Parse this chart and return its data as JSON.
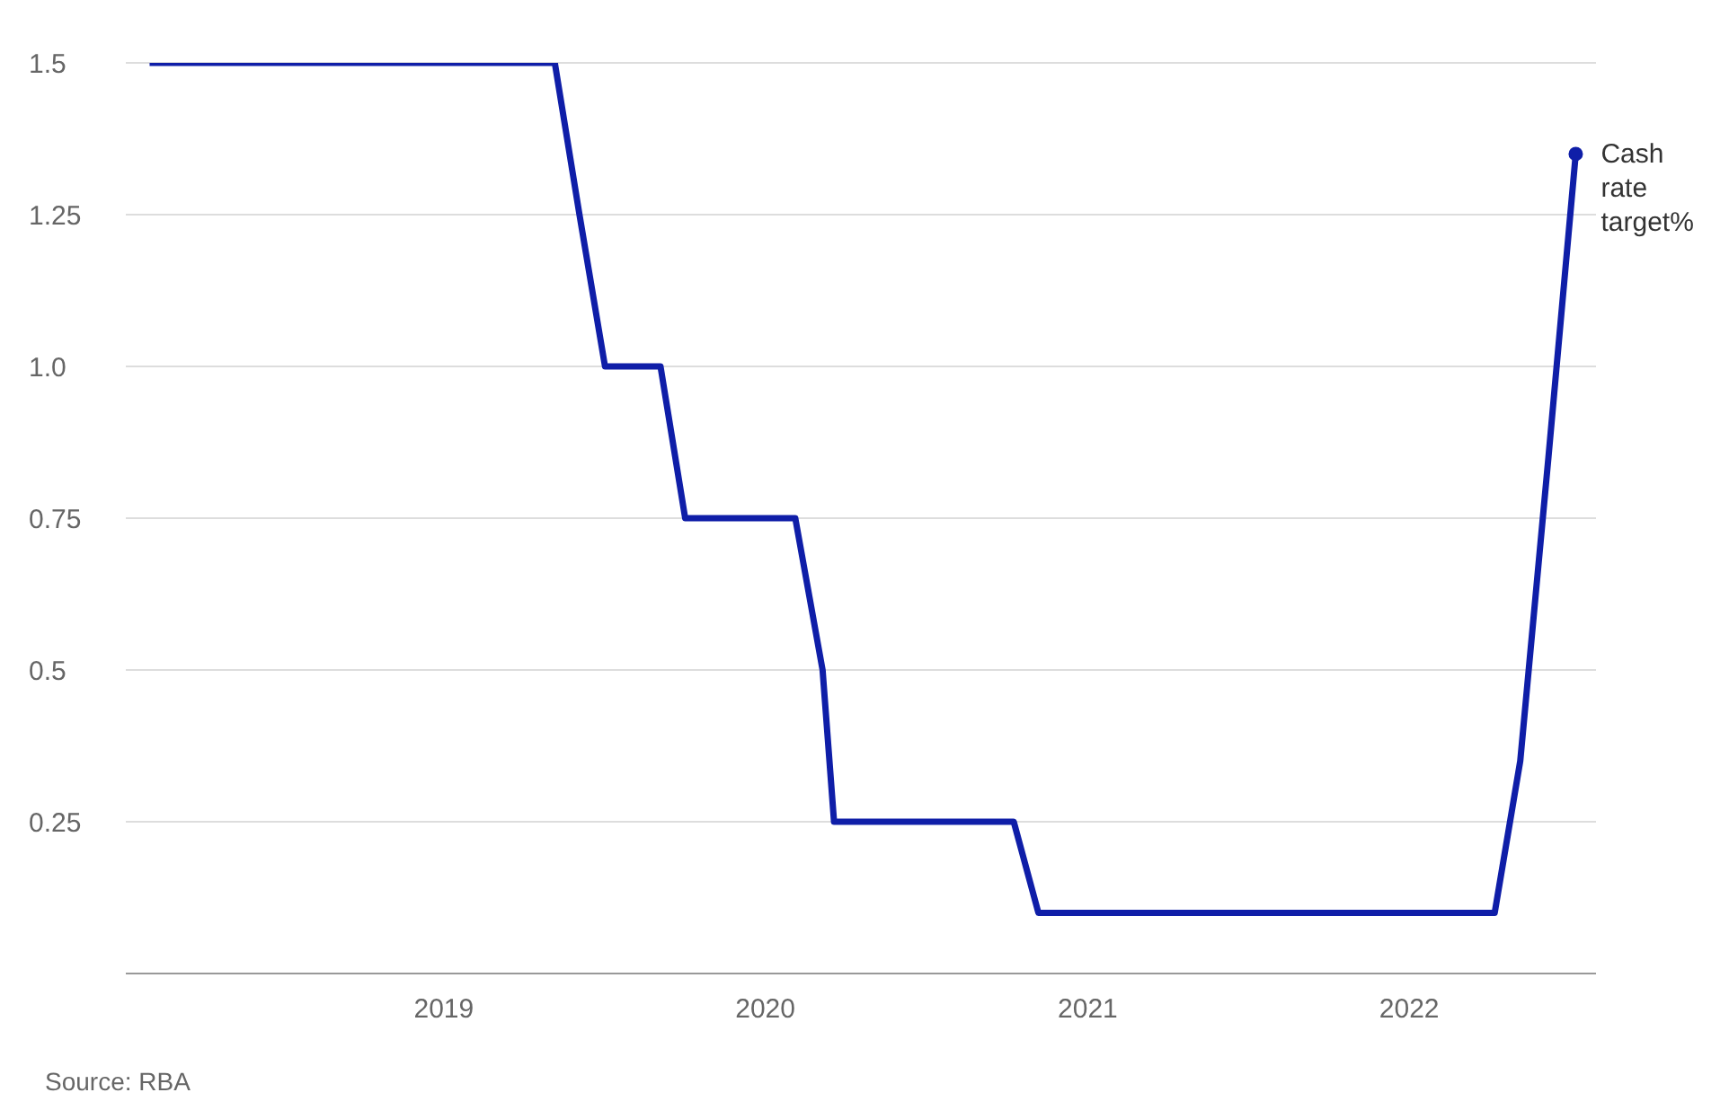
{
  "chart_data": {
    "type": "line",
    "x": [
      "2018-02-01",
      "2019-05-07",
      "2019-06-04",
      "2019-07-03",
      "2019-09-04",
      "2019-10-02",
      "2020-02-04",
      "2020-03-06",
      "2020-03-19",
      "2020-10-09",
      "2020-11-06",
      "2022-04-08",
      "2022-05-07",
      "2022-06-08",
      "2022-07-09"
    ],
    "series": [
      {
        "name": "Cash rate target%",
        "color": "#0f1ea8",
        "values": [
          1.5,
          1.5,
          1.25,
          1.0,
          1.0,
          0.75,
          0.75,
          0.5,
          0.25,
          0.25,
          0.1,
          0.1,
          0.35,
          0.85,
          1.35
        ]
      }
    ],
    "xlim": [
      "2018-01-05",
      "2022-08-01"
    ],
    "xticks": [
      "2019",
      "2020",
      "2021",
      "2022"
    ],
    "ylim": [
      0,
      1.5
    ],
    "yticks": [
      0.25,
      0.5,
      0.75,
      {
        "value": 1,
        "label": "1.0"
      },
      1.25,
      1.5
    ],
    "grid": "y",
    "legend": false,
    "annotations": [
      "Source: RBA"
    ]
  }
}
